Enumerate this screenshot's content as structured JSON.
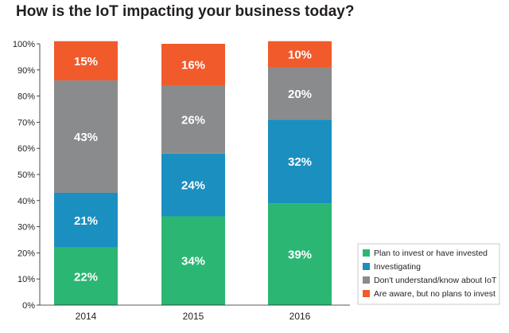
{
  "chart_data": {
    "type": "bar",
    "stacked": true,
    "title": "How is the IoT impacting your business today?",
    "categories": [
      "2014",
      "2015",
      "2016"
    ],
    "series": [
      {
        "name": "Plan to invest or have invested",
        "color": "#2bb673",
        "values": [
          22,
          34,
          39
        ],
        "labels": [
          "22%",
          "34%",
          "39%"
        ]
      },
      {
        "name": "Investigating",
        "color": "#1b8fc0",
        "values": [
          21,
          24,
          32
        ],
        "labels": [
          "21%",
          "24%",
          "32%"
        ]
      },
      {
        "name": "Don't understand/know about IoT",
        "color": "#8a8b8d",
        "values": [
          43,
          26,
          20
        ],
        "labels": [
          "43%",
          "26%",
          "20%"
        ]
      },
      {
        "name": "Are aware, but no plans to invest",
        "color": "#f15a2b",
        "values": [
          15,
          16,
          10
        ],
        "labels": [
          "15%",
          "16%",
          "10%"
        ]
      }
    ],
    "ylim": [
      0,
      100
    ],
    "yticks": [
      "0%",
      "10%",
      "20%",
      "30%",
      "40%",
      "50%",
      "60%",
      "70%",
      "80%",
      "90%",
      "100%"
    ],
    "grid": false,
    "legend": "bottom-right"
  }
}
